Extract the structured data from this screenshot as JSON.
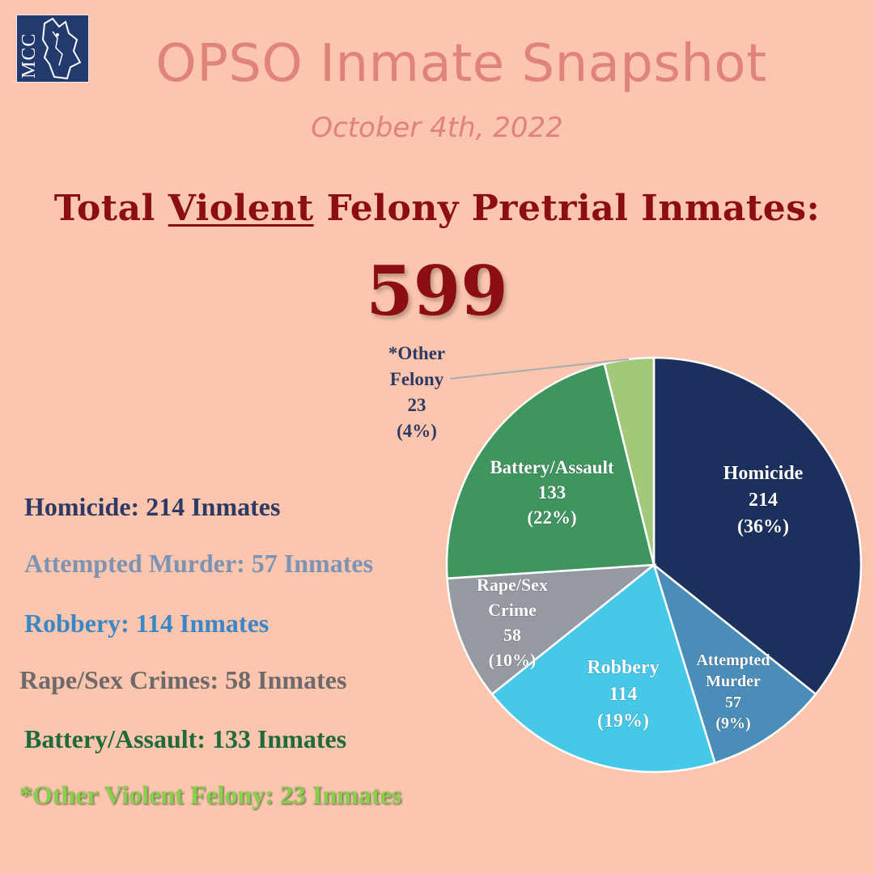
{
  "logo": {
    "text": "MCC",
    "background": "#233a6e"
  },
  "header": {
    "title": "OPSO Inmate Snapshot",
    "date": "October 4th, 2022"
  },
  "heading": {
    "prefix": "Total ",
    "emphasis": "Violent",
    "suffix": " Felony Pretrial Inmates:"
  },
  "total": "599",
  "legend": [
    {
      "text": "Homicide: 214 Inmates",
      "color": "#2e3a63"
    },
    {
      "text": "Attempted Murder: 57 Inmates",
      "color": "#7b94b4"
    },
    {
      "text": "Robbery: 114 Inmates",
      "color": "#3a87c8"
    },
    {
      "text": "Rape/Sex Crimes: 58 Inmates",
      "color": "#6e6a6b"
    },
    {
      "text": "Battery/Assault: 133 Inmates",
      "color": "#1f6a3b"
    },
    {
      "text": "*Other Violent Felony: 23 Inmates",
      "color": "#86d04c"
    }
  ],
  "chart_data": {
    "type": "pie",
    "slices": [
      {
        "label": [
          "Homicide",
          "214",
          "(36%)"
        ],
        "value": 214,
        "color": "#1b305c",
        "text_color": "#ffffff"
      },
      {
        "label": [
          "Attempted",
          "Murder",
          "57",
          "(9%)"
        ],
        "value": 57,
        "color": "#4a8db8",
        "text_color": "#ffffff"
      },
      {
        "label": [
          "Robbery",
          "114",
          "(19%)"
        ],
        "value": 114,
        "color": "#46c8e8",
        "text_color": "#ffffff"
      },
      {
        "label": [
          "Rape/Sex",
          "Crime",
          "58",
          "(10%)"
        ],
        "value": 58,
        "color": "#959aa2",
        "text_color": "#ffffff"
      },
      {
        "label": [
          "Battery/Assault",
          "133",
          "(22%)"
        ],
        "value": 133,
        "color": "#3f955e",
        "text_color": "#ffffff"
      },
      {
        "label": [
          "*Other",
          "Felony",
          "23",
          "(4%)"
        ],
        "value": 23,
        "color": "#a2c87a",
        "text_color": "#2e3a63"
      }
    ]
  }
}
